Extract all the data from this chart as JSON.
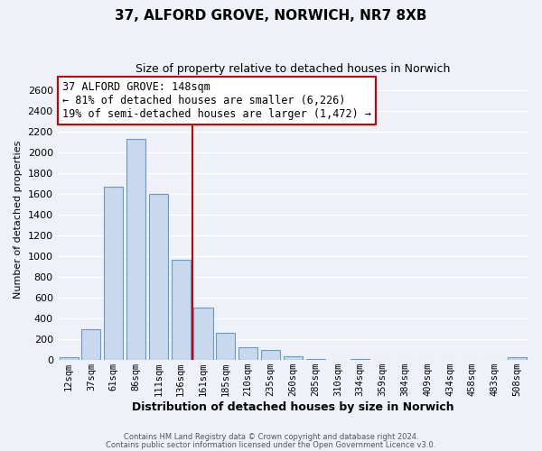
{
  "title": "37, ALFORD GROVE, NORWICH, NR7 8XB",
  "subtitle": "Size of property relative to detached houses in Norwich",
  "xlabel": "Distribution of detached houses by size in Norwich",
  "ylabel": "Number of detached properties",
  "bar_labels": [
    "12sqm",
    "37sqm",
    "61sqm",
    "86sqm",
    "111sqm",
    "136sqm",
    "161sqm",
    "185sqm",
    "210sqm",
    "235sqm",
    "260sqm",
    "285sqm",
    "310sqm",
    "334sqm",
    "359sqm",
    "384sqm",
    "409sqm",
    "434sqm",
    "458sqm",
    "483sqm",
    "508sqm"
  ],
  "bar_heights": [
    20,
    295,
    1670,
    2130,
    1600,
    960,
    505,
    255,
    120,
    95,
    30,
    5,
    0,
    5,
    0,
    0,
    0,
    0,
    0,
    0,
    20
  ],
  "bar_color": "#c8d8ed",
  "bar_edge_color": "#6699cc",
  "vline_pos": 5.5,
  "vline_color": "#cc0000",
  "annotation_title": "37 ALFORD GROVE: 148sqm",
  "annotation_line1": "← 81% of detached houses are smaller (6,226)",
  "annotation_line2": "19% of semi-detached houses are larger (1,472) →",
  "annotation_box_color": "#ffffff",
  "annotation_box_edge": "#cc0000",
  "ylim": [
    0,
    2700
  ],
  "yticks": [
    0,
    200,
    400,
    600,
    800,
    1000,
    1200,
    1400,
    1600,
    1800,
    2000,
    2200,
    2400,
    2600
  ],
  "footer1": "Contains HM Land Registry data © Crown copyright and database right 2024.",
  "footer2": "Contains public sector information licensed under the Open Government Licence v3.0.",
  "background_color": "#eef2f8",
  "grid_color": "#ffffff",
  "title_fontsize": 11,
  "subtitle_fontsize": 9,
  "xlabel_fontsize": 9,
  "ylabel_fontsize": 8,
  "tick_fontsize": 7.5,
  "footer_fontsize": 6.0
}
